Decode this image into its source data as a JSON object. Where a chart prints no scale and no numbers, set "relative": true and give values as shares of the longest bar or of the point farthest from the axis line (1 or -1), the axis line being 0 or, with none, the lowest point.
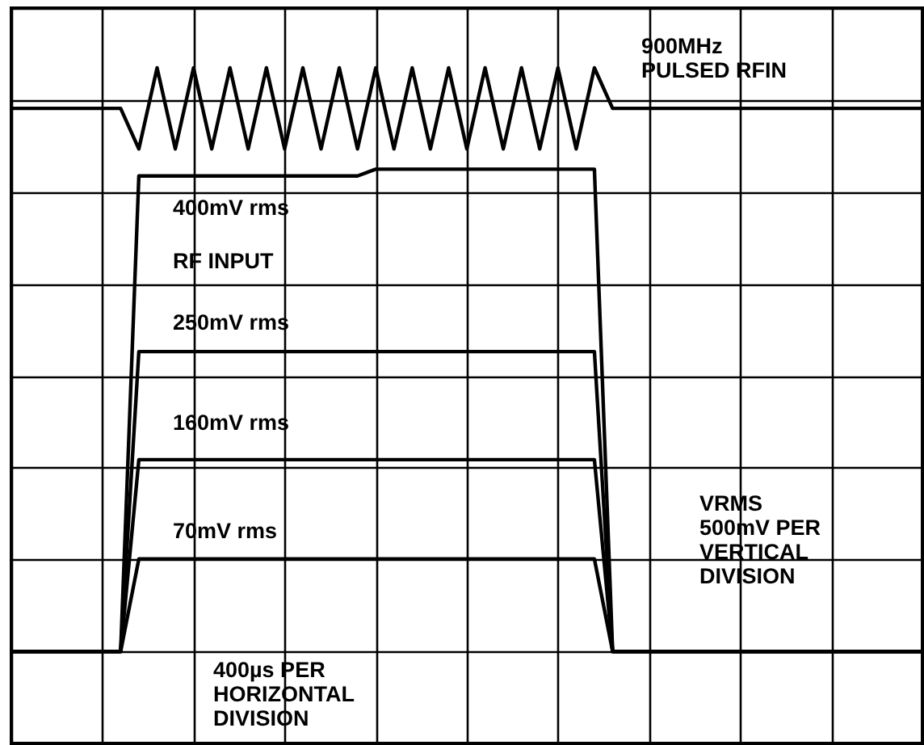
{
  "chart_data": {
    "type": "line",
    "relative": true,
    "grid": true,
    "categories": [
      null,
      null,
      null,
      null,
      null,
      null,
      null,
      null,
      null,
      null,
      null,
      null,
      null,
      null,
      null,
      null,
      null,
      null,
      null,
      null,
      null,
      null,
      null,
      null,
      null,
      null,
      null,
      null,
      null,
      null,
      null,
      null,
      null,
      null,
      null,
      null,
      null,
      null,
      null,
      null,
      null,
      null,
      null,
      null,
      null,
      null,
      null,
      null,
      null,
      null,
      null
    ],
    "series": [
      {
        "color": "#000000",
        "values": [
          0.94,
          0.94,
          0.94,
          0.94,
          0.94,
          0.94,
          0.94,
          0.88,
          1.0,
          0.88,
          1.0,
          0.88,
          1.0,
          0.88,
          1.0,
          0.88,
          1.0,
          0.88,
          1.0,
          0.88,
          1.0,
          0.88,
          1.0,
          0.88,
          1.0,
          0.88,
          1.0,
          0.88,
          1.0,
          0.88,
          1.0,
          0.88,
          1.0,
          0.94,
          0.94,
          0.94,
          0.94,
          0.94,
          0.94,
          0.94,
          0.94,
          0.94,
          0.94,
          0.94,
          0.94,
          0.94,
          0.94,
          0.94,
          0.94,
          0.94,
          0.94
        ]
      },
      {
        "name": "400mV rms",
        "color": "#000000",
        "values": [
          0.136,
          0.136,
          0.136,
          0.136,
          0.136,
          0.136,
          0.136,
          0.84,
          0.84,
          0.84,
          0.84,
          0.84,
          0.84,
          0.84,
          0.84,
          0.84,
          0.84,
          0.84,
          0.84,
          0.84,
          0.85,
          0.85,
          0.85,
          0.85,
          0.85,
          0.85,
          0.85,
          0.85,
          0.85,
          0.85,
          0.85,
          0.85,
          0.85,
          0.136,
          0.136,
          0.136,
          0.136,
          0.136,
          0.136,
          0.136,
          0.136,
          0.136,
          0.136,
          0.136,
          0.136,
          0.136,
          0.136,
          0.136,
          0.136,
          0.136,
          0.136
        ]
      },
      {
        "name": "250mV rms",
        "color": "#000000",
        "values": [
          0.136,
          0.136,
          0.136,
          0.136,
          0.136,
          0.136,
          0.136,
          0.58,
          0.58,
          0.58,
          0.58,
          0.58,
          0.58,
          0.58,
          0.58,
          0.58,
          0.58,
          0.58,
          0.58,
          0.58,
          0.58,
          0.58,
          0.58,
          0.58,
          0.58,
          0.58,
          0.58,
          0.58,
          0.58,
          0.58,
          0.58,
          0.58,
          0.58,
          0.136,
          0.136,
          0.136,
          0.136,
          0.136,
          0.136,
          0.136,
          0.136,
          0.136,
          0.136,
          0.136,
          0.136,
          0.136,
          0.136,
          0.136,
          0.136,
          0.136,
          0.136
        ]
      },
      {
        "name": "160mV rms",
        "color": "#000000",
        "values": [
          0.136,
          0.136,
          0.136,
          0.136,
          0.136,
          0.136,
          0.136,
          0.42,
          0.42,
          0.42,
          0.42,
          0.42,
          0.42,
          0.42,
          0.42,
          0.42,
          0.42,
          0.42,
          0.42,
          0.42,
          0.42,
          0.42,
          0.42,
          0.42,
          0.42,
          0.42,
          0.42,
          0.42,
          0.42,
          0.42,
          0.42,
          0.42,
          0.42,
          0.136,
          0.136,
          0.136,
          0.136,
          0.136,
          0.136,
          0.136,
          0.136,
          0.136,
          0.136,
          0.136,
          0.136,
          0.136,
          0.136,
          0.136,
          0.136,
          0.136,
          0.136
        ]
      },
      {
        "name": "70mV rms",
        "color": "#000000",
        "values": [
          0.136,
          0.136,
          0.136,
          0.136,
          0.136,
          0.136,
          0.136,
          0.273,
          0.273,
          0.273,
          0.273,
          0.273,
          0.273,
          0.273,
          0.273,
          0.273,
          0.273,
          0.273,
          0.273,
          0.273,
          0.273,
          0.273,
          0.273,
          0.273,
          0.273,
          0.273,
          0.273,
          0.273,
          0.273,
          0.273,
          0.273,
          0.273,
          0.273,
          0.136,
          0.136,
          0.136,
          0.136,
          0.136,
          0.136,
          0.136,
          0.136,
          0.136,
          0.136,
          0.136,
          0.136,
          0.136,
          0.136,
          0.136,
          0.136,
          0.136,
          0.136
        ]
      }
    ],
    "annotations": [
      "900MHz\nPULSED RFIN",
      "RF INPUT",
      "VRMS\n500mV PER\nVERTICAL\nDIVISION",
      "400µs PER\nHORIZONTAL\nDIVISION"
    ]
  }
}
